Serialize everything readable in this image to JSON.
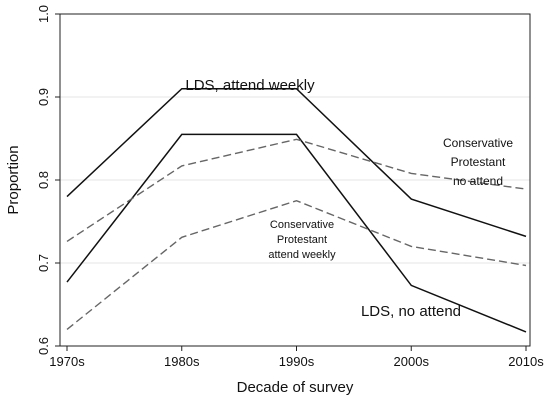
{
  "chart_data": {
    "type": "line",
    "title": "",
    "xlabel": "Decade of survey",
    "ylabel": "Proportion",
    "categories": [
      "1970s",
      "1980s",
      "1990s",
      "2000s",
      "2010s"
    ],
    "ylim": [
      0.6,
      1.0
    ],
    "yticks": [
      "0.6",
      "0.7",
      "0.8",
      "0.9",
      "1.0"
    ],
    "grid": "horizontal",
    "legend": "none",
    "series": [
      {
        "name": "LDS, attend weekly",
        "style": "solid",
        "color": "#111111",
        "values": [
          0.78,
          0.91,
          0.91,
          0.777,
          0.732
        ]
      },
      {
        "name": "LDS, no attend",
        "style": "solid",
        "color": "#111111",
        "values": [
          0.677,
          0.855,
          0.855,
          0.673,
          0.617
        ]
      },
      {
        "name": "Conservative Protestant no attend",
        "style": "dashed",
        "color": "#666666",
        "values": [
          0.726,
          0.817,
          0.849,
          0.808,
          0.789
        ]
      },
      {
        "name": "Conservative Protestant attend weekly",
        "style": "dashed",
        "color": "#666666",
        "values": [
          0.62,
          0.731,
          0.775,
          0.72,
          0.697
        ]
      }
    ],
    "annotations": [
      {
        "lines": [
          "LDS, attend weekly"
        ]
      },
      {
        "lines": [
          "Conservative",
          "Protestant",
          "no attend"
        ]
      },
      {
        "lines": [
          "Conservative",
          "Protestant",
          "attend weekly"
        ]
      },
      {
        "lines": [
          "LDS, no attend"
        ]
      }
    ]
  }
}
